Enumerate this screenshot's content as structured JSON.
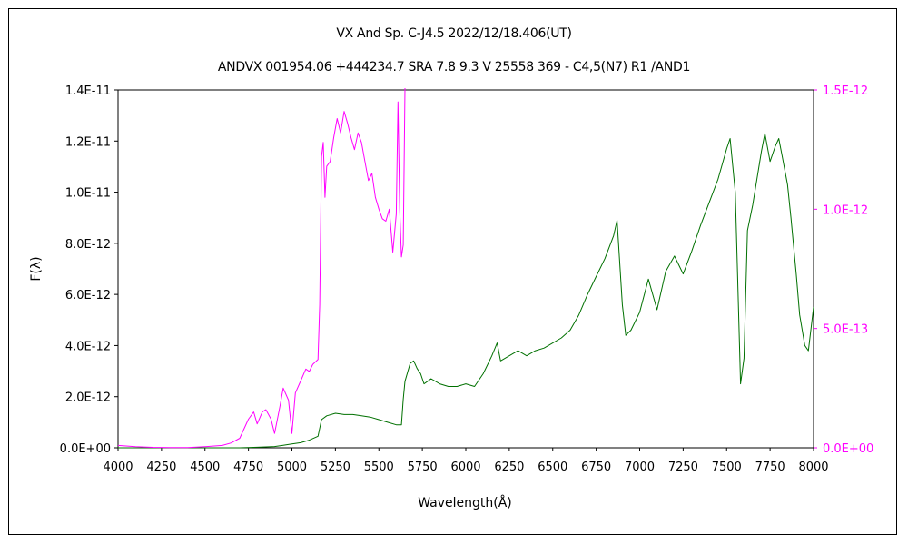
{
  "chart_data": {
    "type": "line",
    "title": "VX And    Sp. C-J4.5    2022/12/18.406(UT)",
    "subtitle": "ANDVX 001954.06 +444234.7 SRA 7.8 9.3  V 25558 369 - C4,5(N7) R1 /AND1",
    "xlabel": "Wavelength(Å)",
    "ylabel": "F(λ)",
    "xlim": [
      4000,
      8000
    ],
    "ylim": [
      0,
      1.4e-11
    ],
    "y2lim": [
      0,
      1.5e-12
    ],
    "x_ticks": [
      "4000",
      "4250",
      "4500",
      "4750",
      "5000",
      "5250",
      "5500",
      "5750",
      "6000",
      "6250",
      "6500",
      "6750",
      "7000",
      "7250",
      "7500",
      "7750",
      "8000"
    ],
    "y_ticks": [
      "0.0E+00",
      "2.0E-12",
      "4.0E-12",
      "6.0E-12",
      "8.0E-12",
      "1.0E-11",
      "1.2E-11",
      "1.4E-11"
    ],
    "y2_ticks": [
      "0.0E+00",
      "5.0E-13",
      "1.0E-12",
      "1.5E-12"
    ],
    "grid": false,
    "series": [
      {
        "axis": "left",
        "color": "#007000",
        "x": [
          4000,
          4700,
          4800,
          4900,
          4950,
          5000,
          5050,
          5100,
          5150,
          5170,
          5200,
          5250,
          5300,
          5350,
          5400,
          5450,
          5500,
          5550,
          5600,
          5630,
          5640,
          5650,
          5680,
          5700,
          5720,
          5740,
          5760,
          5780,
          5800,
          5850,
          5900,
          5950,
          6000,
          6050,
          6100,
          6150,
          6180,
          6200,
          6250,
          6300,
          6350,
          6400,
          6450,
          6500,
          6550,
          6600,
          6650,
          6700,
          6750,
          6800,
          6850,
          6870,
          6900,
          6920,
          6950,
          7000,
          7050,
          7100,
          7150,
          7200,
          7250,
          7300,
          7350,
          7400,
          7450,
          7500,
          7520,
          7550,
          7580,
          7600,
          7620,
          7650,
          7700,
          7720,
          7750,
          7780,
          7800,
          7820,
          7850,
          7870,
          7900,
          7920,
          7950,
          7970,
          8000
        ],
        "values": [
          0,
          0,
          2e-14,
          5e-14,
          1e-13,
          1.5e-13,
          2e-13,
          3e-13,
          4.5e-13,
          1.1e-12,
          1.25e-12,
          1.35e-12,
          1.3e-12,
          1.3e-12,
          1.25e-12,
          1.2e-12,
          1.1e-12,
          1e-12,
          9e-13,
          9e-13,
          1.9e-12,
          2.6e-12,
          3.3e-12,
          3.4e-12,
          3.1e-12,
          2.9e-12,
          2.5e-12,
          2.6e-12,
          2.7e-12,
          2.5e-12,
          2.4e-12,
          2.4e-12,
          2.5e-12,
          2.4e-12,
          2.9e-12,
          3.6e-12,
          4.1e-12,
          3.4e-12,
          3.6e-12,
          3.8e-12,
          3.6e-12,
          3.8e-12,
          3.9e-12,
          4.1e-12,
          4.3e-12,
          4.6e-12,
          5.2e-12,
          6e-12,
          6.7e-12,
          7.4e-12,
          8.3e-12,
          8.9e-12,
          5.6e-12,
          4.4e-12,
          4.6e-12,
          5.3e-12,
          6.6e-12,
          5.4e-12,
          6.9e-12,
          7.5e-12,
          6.8e-12,
          7.7e-12,
          8.7e-12,
          9.6e-12,
          1.05e-11,
          1.17e-11,
          1.21e-11,
          1e-11,
          2.5e-12,
          3.5e-12,
          8.5e-12,
          9.5e-12,
          1.16e-11,
          1.23e-11,
          1.12e-11,
          1.18e-11,
          1.21e-11,
          1.14e-11,
          1.03e-11,
          9e-12,
          6.8e-12,
          5.2e-12,
          4e-12,
          3.8e-12,
          5.5e-12
        ]
      },
      {
        "axis": "right",
        "color": "#ff00ff",
        "x": [
          4000,
          4100,
          4200,
          4300,
          4400,
          4500,
          4600,
          4650,
          4700,
          4750,
          4780,
          4800,
          4830,
          4850,
          4880,
          4900,
          4930,
          4950,
          4980,
          5000,
          5020,
          5050,
          5080,
          5100,
          5120,
          5150,
          5160,
          5170,
          5180,
          5190,
          5200,
          5220,
          5240,
          5260,
          5280,
          5300,
          5320,
          5340,
          5360,
          5380,
          5400,
          5420,
          5440,
          5460,
          5480,
          5500,
          5520,
          5540,
          5560,
          5580,
          5600,
          5610,
          5620,
          5630,
          5640,
          5650
        ],
        "values": [
          1e-14,
          5e-15,
          2e-15,
          1e-15,
          1e-15,
          5e-15,
          1e-14,
          2e-14,
          4e-14,
          1.2e-13,
          1.5e-13,
          1e-13,
          1.5e-13,
          1.6e-13,
          1.2e-13,
          6e-14,
          1.7e-13,
          2.5e-13,
          2e-13,
          6e-14,
          2.3e-13,
          2.8e-13,
          3.3e-13,
          3.2e-13,
          3.5e-13,
          3.7e-13,
          6e-13,
          1.22e-12,
          1.28e-12,
          1.05e-12,
          1.18e-12,
          1.2e-12,
          1.3e-12,
          1.38e-12,
          1.32e-12,
          1.41e-12,
          1.36e-12,
          1.3e-12,
          1.25e-12,
          1.32e-12,
          1.28e-12,
          1.2e-12,
          1.12e-12,
          1.15e-12,
          1.05e-12,
          1e-12,
          9.6e-13,
          9.5e-13,
          1e-12,
          8.2e-13,
          9.8e-13,
          1.45e-12,
          1e-12,
          8e-13,
          8.5e-13,
          1.6e-12
        ]
      }
    ]
  }
}
